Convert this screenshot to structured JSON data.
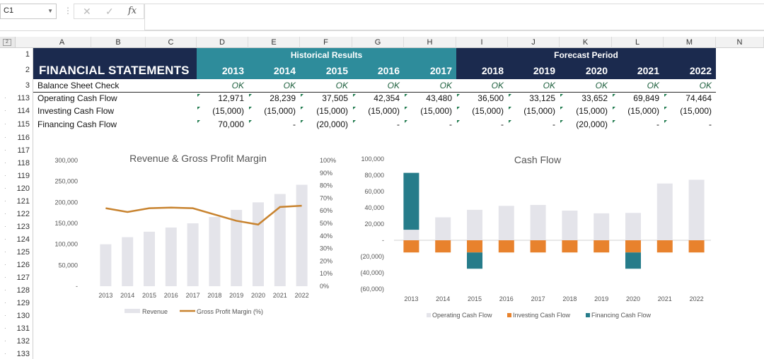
{
  "formula_bar": {
    "name_box": "C1",
    "cancel_glyph": "✕",
    "enter_glyph": "✓",
    "fx_label": "fx"
  },
  "columns": [
    "A",
    "B",
    "C",
    "D",
    "E",
    "F",
    "G",
    "H",
    "I",
    "J",
    "K",
    "L",
    "M",
    "N"
  ],
  "rows": [
    "1",
    "2",
    "3",
    "113",
    "114",
    "115",
    "116",
    "117",
    "118",
    "119",
    "120",
    "121",
    "122",
    "123",
    "124",
    "125",
    "126",
    "127",
    "128",
    "129",
    "130",
    "131",
    "132",
    "133"
  ],
  "sheet": {
    "title": "FINANCIAL STATEMENTS",
    "historical_label": "Historical Results",
    "forecast_label": "Forecast Period",
    "years": [
      "2013",
      "2014",
      "2015",
      "2016",
      "2017",
      "2018",
      "2019",
      "2020",
      "2021",
      "2022"
    ],
    "balance_check_label": "Balance Sheet Check",
    "balance_check_values": [
      "OK",
      "OK",
      "OK",
      "OK",
      "OK",
      "OK",
      "OK",
      "OK",
      "OK",
      "OK"
    ],
    "operating_label": "Operating Cash Flow",
    "operating_values": [
      "12,971",
      "28,239",
      "37,505",
      "42,354",
      "43,480",
      "36,500",
      "33,125",
      "33,652",
      "69,849",
      "74,464"
    ],
    "investing_label": "Investing Cash Flow",
    "investing_values": [
      "(15,000)",
      "(15,000)",
      "(15,000)",
      "(15,000)",
      "(15,000)",
      "(15,000)",
      "(15,000)",
      "(15,000)",
      "(15,000)",
      "(15,000)"
    ],
    "financing_label": "Financing Cash Flow",
    "financing_values": [
      "70,000",
      "-",
      "(20,000)",
      "-",
      "-",
      "-",
      "-",
      "(20,000)",
      "-",
      "-"
    ]
  },
  "chart_data": [
    {
      "type": "bar",
      "title": "Revenue & Gross Profit Margin",
      "categories": [
        "2013",
        "2014",
        "2015",
        "2016",
        "2017",
        "2018",
        "2019",
        "2020",
        "2021",
        "2022"
      ],
      "series": [
        {
          "name": "Revenue",
          "kind": "bar",
          "values": [
            100000,
            117000,
            130000,
            140000,
            150000,
            165000,
            182000,
            200000,
            220000,
            242000
          ],
          "color": "#e4e4ea"
        },
        {
          "name": "Gross Profit Margin (%)",
          "kind": "line",
          "axis": "right",
          "values": [
            62,
            59,
            62,
            62.5,
            62,
            57,
            52,
            49,
            63,
            64
          ],
          "color": "#c8832f"
        }
      ],
      "yticks_left": [
        "300,000",
        "250,000",
        "200,000",
        "150,000",
        "100,000",
        "50,000",
        "-"
      ],
      "yticks_right": [
        "100%",
        "90%",
        "80%",
        "70%",
        "60%",
        "50%",
        "40%",
        "30%",
        "20%",
        "10%",
        "0%"
      ],
      "ylim_left": [
        0,
        300000
      ],
      "ylim_right": [
        0,
        100
      ],
      "legend": [
        "Revenue",
        "Gross Profit Margin (%)"
      ]
    },
    {
      "type": "bar",
      "title": "Cash Flow",
      "categories": [
        "2013",
        "2014",
        "2015",
        "2016",
        "2017",
        "2018",
        "2019",
        "2020",
        "2021",
        "2022"
      ],
      "series": [
        {
          "name": "Operating Cash Flow",
          "values": [
            12971,
            28239,
            37505,
            42354,
            43480,
            36500,
            33125,
            33652,
            69849,
            74464
          ],
          "color": "#e4e4ea"
        },
        {
          "name": "Investing Cash Flow",
          "values": [
            -15000,
            -15000,
            -15000,
            -15000,
            -15000,
            -15000,
            -15000,
            -15000,
            -15000,
            -15000
          ],
          "color": "#e8822d"
        },
        {
          "name": "Financing Cash Flow",
          "values": [
            70000,
            0,
            -20000,
            0,
            0,
            0,
            0,
            -20000,
            0,
            0
          ],
          "color": "#267c8a"
        }
      ],
      "yticks": [
        "100,000",
        "80,000",
        "60,000",
        "40,000",
        "20,000",
        "-",
        "(20,000)",
        "(40,000)",
        "(60,000)"
      ],
      "ylim": [
        -60000,
        100000
      ],
      "legend": [
        "Operating Cash Flow",
        "Investing Cash Flow",
        "Financing Cash Flow"
      ]
    }
  ]
}
